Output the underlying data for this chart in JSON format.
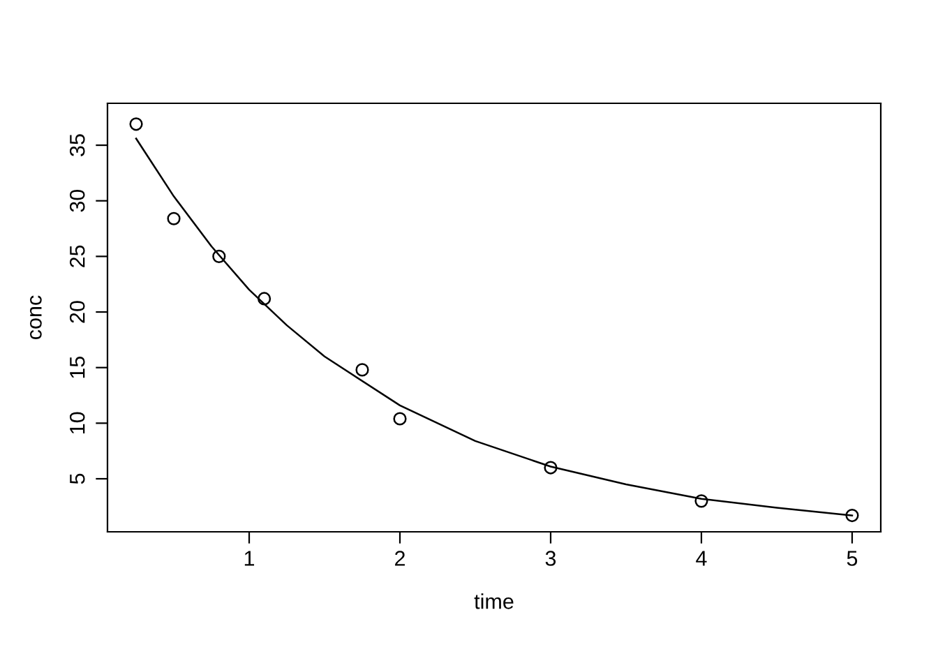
{
  "chart_data": {
    "type": "scatter",
    "xlabel": "time",
    "ylabel": "conc",
    "xlim": [
      0.06,
      5.19
    ],
    "ylim": [
      0.23,
      38.77
    ],
    "xticks": [
      1,
      2,
      3,
      4,
      5
    ],
    "yticks": [
      5,
      10,
      15,
      20,
      25,
      30,
      35
    ],
    "grid": false,
    "legend": false,
    "marker": "circle",
    "series": [
      {
        "color": "#000000",
        "x": [
          0.25,
          0.5,
          0.8,
          1.1,
          1.75,
          2,
          3,
          4,
          5
        ],
        "values": [
          36.9,
          28.4,
          25.0,
          21.2,
          14.8,
          10.4,
          6.0,
          3.0,
          1.7
        ]
      },
      {
        "type": "line",
        "marker": "none",
        "line_style": "solid",
        "color": "#000000",
        "x": [
          0.25,
          0.5,
          0.75,
          1,
          1.25,
          1.5,
          2,
          2.5,
          3,
          3.5,
          4,
          4.5,
          5
        ],
        "values": [
          35.6,
          30.4,
          25.9,
          22.0,
          18.8,
          16.0,
          11.6,
          8.4,
          6.1,
          4.5,
          3.2,
          2.4,
          1.7
        ]
      }
    ]
  }
}
